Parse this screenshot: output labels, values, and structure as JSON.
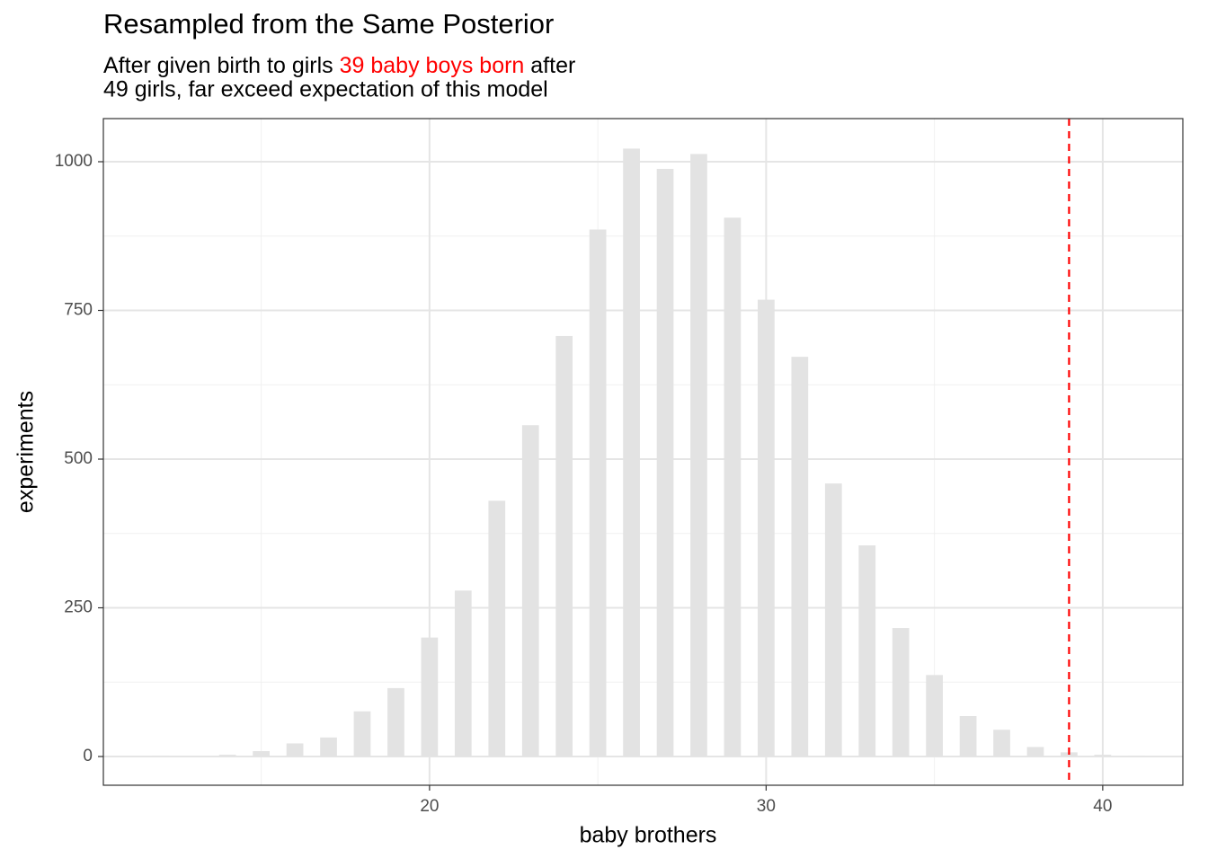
{
  "chart_data": {
    "type": "bar",
    "title": "Resampled from the Same Posterior",
    "subtitle": {
      "line1": [
        "After given birth to girls ",
        "39 baby boys born",
        " after"
      ],
      "line2": "49 girls, far exceed expectation of this model",
      "highlight_color": "#ff0000"
    },
    "x_label": "baby brothers",
    "y_label": "experiments",
    "x": [
      12,
      13,
      14,
      15,
      16,
      17,
      18,
      19,
      20,
      21,
      22,
      23,
      24,
      25,
      26,
      27,
      28,
      29,
      30,
      31,
      32,
      33,
      34,
      35,
      36,
      37,
      38,
      39,
      40,
      41
    ],
    "values": [
      1,
      0,
      3,
      9,
      22,
      32,
      76,
      115,
      200,
      279,
      430,
      557,
      707,
      886,
      1022,
      988,
      1013,
      906,
      768,
      672,
      459,
      355,
      216,
      137,
      68,
      45,
      16,
      7,
      3,
      1
    ],
    "color": "#e3e3e3",
    "xlim": [
      10.31,
      42.38
    ],
    "xticks": [
      20,
      30,
      40
    ],
    "ylim": [
      -48.3,
      1072.5
    ],
    "yticks": [
      0,
      250,
      500,
      750,
      1000
    ],
    "grid": true,
    "vline": {
      "x": 39,
      "color": "#ff0000",
      "linetype": "dashed"
    }
  }
}
